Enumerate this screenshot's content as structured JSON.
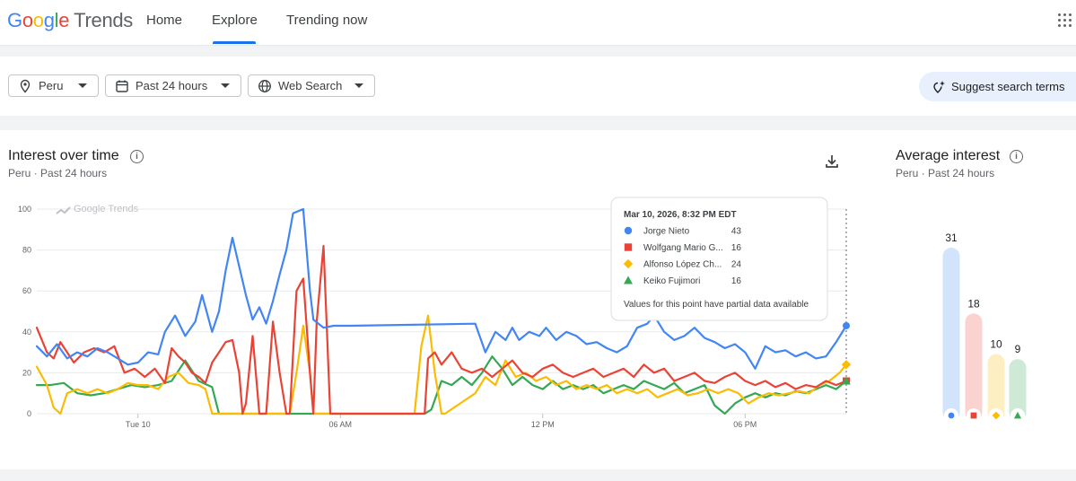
{
  "header": {
    "logo_google": "Google",
    "logo_trends": "Trends",
    "nav": [
      {
        "label": "Home",
        "active": false
      },
      {
        "label": "Explore",
        "active": true
      },
      {
        "label": "Trending now",
        "active": false
      }
    ],
    "apps_icon": "apps-grid-icon"
  },
  "filters": {
    "location": "Peru",
    "time_range": "Past 24 hours",
    "search_type": "Web Search",
    "suggest_label": "Suggest search terms"
  },
  "interest": {
    "title": "Interest over time",
    "subtitle_location": "Peru",
    "subtitle_range": "Past 24 hours",
    "watermark": "Google Trends"
  },
  "tooltip": {
    "date": "Mar 10, 2026, 8:32 PM EDT",
    "rows": [
      {
        "name": "Jorge Nieto",
        "value": "43",
        "color": "#4285f4",
        "marker": "circle"
      },
      {
        "name": "Wolfgang Mario G...",
        "value": "16",
        "color": "#ea4335",
        "marker": "square"
      },
      {
        "name": "Alfonso López Ch...",
        "value": "24",
        "color": "#fbbc04",
        "marker": "diamond"
      },
      {
        "name": "Keiko Fujimori",
        "value": "16",
        "color": "#34a853",
        "marker": "triangle"
      }
    ],
    "note": "Values for this point have partial data available"
  },
  "average": {
    "title": "Average interest",
    "subtitle_location": "Peru",
    "subtitle_range": "Past 24 hours",
    "bars": [
      {
        "value": 31,
        "label": "31",
        "color": "#4285f4",
        "light": "#d2e3fc",
        "marker": "circle"
      },
      {
        "value": 18,
        "label": "18",
        "color": "#ea4335",
        "light": "#fad2cf",
        "marker": "square"
      },
      {
        "value": 10,
        "label": "10",
        "color": "#fbbc04",
        "light": "#feefc3",
        "marker": "diamond"
      },
      {
        "value": 9,
        "label": "9",
        "color": "#34a853",
        "light": "#ceead6",
        "marker": "triangle"
      }
    ]
  },
  "chart_data": {
    "type": "line",
    "ylim": [
      0,
      100
    ],
    "yticks": [
      "0",
      "20",
      "40",
      "60",
      "80",
      "100"
    ],
    "xlim": [
      0,
      24
    ],
    "xticks": [
      {
        "label": "Tue 10",
        "x": 3
      },
      {
        "label": "06 AM",
        "x": 9
      },
      {
        "label": "12 PM",
        "x": 15
      },
      {
        "label": "06 PM",
        "x": 21
      }
    ],
    "legend": "tooltip",
    "series": [
      {
        "name": "Jorge Nieto",
        "color": "#4285f4",
        "points": [
          [
            0,
            33
          ],
          [
            0.3,
            28
          ],
          [
            0.6,
            34
          ],
          [
            0.9,
            27
          ],
          [
            1.2,
            30
          ],
          [
            1.5,
            28
          ],
          [
            1.8,
            32
          ],
          [
            2.1,
            30
          ],
          [
            2.4,
            27
          ],
          [
            2.7,
            24
          ],
          [
            3,
            25
          ],
          [
            3.3,
            30
          ],
          [
            3.6,
            29
          ],
          [
            3.8,
            40
          ],
          [
            4.1,
            48
          ],
          [
            4.4,
            38
          ],
          [
            4.7,
            45
          ],
          [
            4.9,
            58
          ],
          [
            5.2,
            40
          ],
          [
            5.4,
            50
          ],
          [
            5.6,
            70
          ],
          [
            5.8,
            86
          ],
          [
            6,
            72
          ],
          [
            6.2,
            58
          ],
          [
            6.4,
            46
          ],
          [
            6.6,
            52
          ],
          [
            6.8,
            44
          ],
          [
            7,
            55
          ],
          [
            7.2,
            68
          ],
          [
            7.4,
            80
          ],
          [
            7.6,
            98
          ],
          [
            7.9,
            100
          ],
          [
            8.1,
            60
          ],
          [
            8.2,
            46
          ],
          [
            8.5,
            42
          ],
          [
            8.8,
            43
          ],
          [
            9.3,
            43
          ],
          [
            13,
            44
          ],
          [
            13.3,
            30
          ],
          [
            13.6,
            40
          ],
          [
            13.9,
            36
          ],
          [
            14.1,
            42
          ],
          [
            14.3,
            36
          ],
          [
            14.6,
            40
          ],
          [
            14.9,
            38
          ],
          [
            15.1,
            42
          ],
          [
            15.4,
            36
          ],
          [
            15.7,
            40
          ],
          [
            16,
            38
          ],
          [
            16.3,
            34
          ],
          [
            16.6,
            35
          ],
          [
            16.9,
            32
          ],
          [
            17.2,
            30
          ],
          [
            17.5,
            33
          ],
          [
            17.8,
            42
          ],
          [
            18.1,
            44
          ],
          [
            18.3,
            48
          ],
          [
            18.6,
            40
          ],
          [
            18.9,
            36
          ],
          [
            19.2,
            38
          ],
          [
            19.5,
            42
          ],
          [
            19.8,
            37
          ],
          [
            20.1,
            35
          ],
          [
            20.4,
            32
          ],
          [
            20.7,
            34
          ],
          [
            21,
            30
          ],
          [
            21.3,
            22
          ],
          [
            21.6,
            33
          ],
          [
            21.9,
            30
          ],
          [
            22.2,
            31
          ],
          [
            22.5,
            28
          ],
          [
            22.8,
            30
          ],
          [
            23.1,
            27
          ],
          [
            23.4,
            28
          ],
          [
            23.7,
            35
          ],
          [
            24,
            43
          ]
        ]
      },
      {
        "name": "Wolfgang Mario G...",
        "color": "#ea4335",
        "points": [
          [
            0,
            42
          ],
          [
            0.3,
            30
          ],
          [
            0.5,
            27
          ],
          [
            0.7,
            35
          ],
          [
            0.9,
            30
          ],
          [
            1.1,
            25
          ],
          [
            1.4,
            30
          ],
          [
            1.7,
            32
          ],
          [
            2,
            30
          ],
          [
            2.3,
            33
          ],
          [
            2.6,
            20
          ],
          [
            2.9,
            22
          ],
          [
            3.2,
            18
          ],
          [
            3.5,
            22
          ],
          [
            3.8,
            15
          ],
          [
            4,
            32
          ],
          [
            4.2,
            28
          ],
          [
            4.4,
            25
          ],
          [
            4.6,
            20
          ],
          [
            4.8,
            18
          ],
          [
            5,
            15
          ],
          [
            5.2,
            25
          ],
          [
            5.4,
            30
          ],
          [
            5.6,
            35
          ],
          [
            5.8,
            36
          ],
          [
            6,
            20
          ],
          [
            6.1,
            0
          ],
          [
            6.2,
            5
          ],
          [
            6.4,
            38
          ],
          [
            6.6,
            0
          ],
          [
            6.8,
            0
          ],
          [
            7,
            45
          ],
          [
            7.2,
            20
          ],
          [
            7.4,
            0
          ],
          [
            7.5,
            0
          ],
          [
            7.7,
            60
          ],
          [
            7.9,
            66
          ],
          [
            8.1,
            20
          ],
          [
            8.2,
            0
          ],
          [
            8.3,
            45
          ],
          [
            8.5,
            82
          ],
          [
            8.7,
            0
          ],
          [
            11.5,
            0
          ],
          [
            11.6,
            27
          ],
          [
            11.8,
            30
          ],
          [
            12,
            24
          ],
          [
            12.3,
            30
          ],
          [
            12.6,
            22
          ],
          [
            12.9,
            20
          ],
          [
            13.2,
            22
          ],
          [
            13.5,
            18
          ],
          [
            13.8,
            22
          ],
          [
            14.1,
            26
          ],
          [
            14.4,
            20
          ],
          [
            14.7,
            18
          ],
          [
            15,
            22
          ],
          [
            15.3,
            24
          ],
          [
            15.6,
            20
          ],
          [
            15.9,
            18
          ],
          [
            16.2,
            20
          ],
          [
            16.5,
            22
          ],
          [
            16.8,
            18
          ],
          [
            17.1,
            20
          ],
          [
            17.4,
            22
          ],
          [
            17.7,
            18
          ],
          [
            18,
            24
          ],
          [
            18.3,
            20
          ],
          [
            18.6,
            22
          ],
          [
            18.9,
            16
          ],
          [
            19.2,
            18
          ],
          [
            19.5,
            20
          ],
          [
            19.8,
            16
          ],
          [
            20.1,
            15
          ],
          [
            20.4,
            18
          ],
          [
            20.7,
            20
          ],
          [
            21,
            16
          ],
          [
            21.3,
            14
          ],
          [
            21.6,
            16
          ],
          [
            21.9,
            13
          ],
          [
            22.2,
            15
          ],
          [
            22.5,
            12
          ],
          [
            22.8,
            14
          ],
          [
            23.1,
            13
          ],
          [
            23.4,
            16
          ],
          [
            23.7,
            14
          ],
          [
            24,
            16
          ]
        ]
      },
      {
        "name": "Alfonso López Ch...",
        "color": "#fbbc04",
        "points": [
          [
            0,
            23
          ],
          [
            0.3,
            14
          ],
          [
            0.5,
            3
          ],
          [
            0.7,
            0
          ],
          [
            0.9,
            10
          ],
          [
            1.2,
            12
          ],
          [
            1.5,
            10
          ],
          [
            1.8,
            12
          ],
          [
            2.1,
            10
          ],
          [
            2.4,
            12
          ],
          [
            2.7,
            15
          ],
          [
            3,
            14
          ],
          [
            3.3,
            14
          ],
          [
            3.6,
            12
          ],
          [
            3.9,
            18
          ],
          [
            4.2,
            20
          ],
          [
            4.5,
            15
          ],
          [
            4.8,
            14
          ],
          [
            5,
            12
          ],
          [
            5.2,
            0
          ],
          [
            7.5,
            0
          ],
          [
            7.7,
            20
          ],
          [
            7.9,
            43
          ],
          [
            8.1,
            20
          ],
          [
            8.2,
            0
          ],
          [
            11.2,
            0
          ],
          [
            11.4,
            33
          ],
          [
            11.6,
            48
          ],
          [
            11.8,
            20
          ],
          [
            12,
            0
          ],
          [
            12.1,
            0
          ],
          [
            13,
            10
          ],
          [
            13.3,
            18
          ],
          [
            13.6,
            14
          ],
          [
            13.9,
            26
          ],
          [
            14.2,
            18
          ],
          [
            14.5,
            20
          ],
          [
            14.8,
            16
          ],
          [
            15.1,
            18
          ],
          [
            15.4,
            14
          ],
          [
            15.7,
            16
          ],
          [
            16,
            12
          ],
          [
            16.3,
            14
          ],
          [
            16.6,
            12
          ],
          [
            16.9,
            14
          ],
          [
            17.2,
            10
          ],
          [
            17.5,
            12
          ],
          [
            17.8,
            10
          ],
          [
            18.1,
            12
          ],
          [
            18.4,
            8
          ],
          [
            18.7,
            10
          ],
          [
            19,
            12
          ],
          [
            19.3,
            9
          ],
          [
            19.6,
            10
          ],
          [
            19.9,
            12
          ],
          [
            20.2,
            10
          ],
          [
            20.5,
            12
          ],
          [
            20.8,
            10
          ],
          [
            21.1,
            5
          ],
          [
            21.4,
            8
          ],
          [
            21.7,
            10
          ],
          [
            22,
            9
          ],
          [
            22.3,
            10
          ],
          [
            22.6,
            11
          ],
          [
            22.9,
            10
          ],
          [
            23.2,
            14
          ],
          [
            23.5,
            16
          ],
          [
            23.8,
            20
          ],
          [
            24,
            24
          ]
        ]
      },
      {
        "name": "Keiko Fujimori",
        "color": "#34a853",
        "points": [
          [
            0,
            14
          ],
          [
            0.4,
            14
          ],
          [
            0.8,
            15
          ],
          [
            1.2,
            10
          ],
          [
            1.6,
            9
          ],
          [
            2,
            10
          ],
          [
            2.4,
            12
          ],
          [
            2.8,
            14
          ],
          [
            3.2,
            13
          ],
          [
            3.6,
            14
          ],
          [
            4,
            16
          ],
          [
            4.4,
            26
          ],
          [
            4.8,
            16
          ],
          [
            5.2,
            13
          ],
          [
            5.4,
            0
          ],
          [
            11.5,
            0
          ],
          [
            11.7,
            2
          ],
          [
            12,
            16
          ],
          [
            12.3,
            14
          ],
          [
            12.6,
            18
          ],
          [
            12.9,
            14
          ],
          [
            13.2,
            20
          ],
          [
            13.5,
            28
          ],
          [
            13.8,
            22
          ],
          [
            14.1,
            14
          ],
          [
            14.4,
            18
          ],
          [
            14.7,
            14
          ],
          [
            15,
            12
          ],
          [
            15.3,
            16
          ],
          [
            15.6,
            12
          ],
          [
            15.9,
            14
          ],
          [
            16.2,
            12
          ],
          [
            16.5,
            14
          ],
          [
            16.8,
            10
          ],
          [
            17.1,
            12
          ],
          [
            17.4,
            14
          ],
          [
            17.7,
            12
          ],
          [
            18,
            16
          ],
          [
            18.3,
            14
          ],
          [
            18.6,
            12
          ],
          [
            18.9,
            15
          ],
          [
            19.2,
            10
          ],
          [
            19.5,
            12
          ],
          [
            19.8,
            14
          ],
          [
            20.1,
            4
          ],
          [
            20.4,
            0
          ],
          [
            20.7,
            5
          ],
          [
            21,
            8
          ],
          [
            21.3,
            10
          ],
          [
            21.6,
            8
          ],
          [
            21.9,
            10
          ],
          [
            22.2,
            9
          ],
          [
            22.5,
            11
          ],
          [
            22.8,
            10
          ],
          [
            23.1,
            12
          ],
          [
            23.4,
            14
          ],
          [
            23.7,
            12
          ],
          [
            24,
            16
          ]
        ]
      }
    ]
  }
}
